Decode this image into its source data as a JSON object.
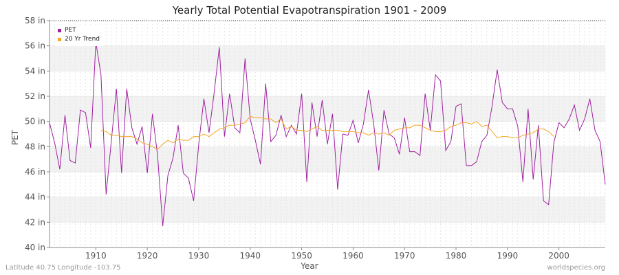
{
  "chart_data": {
    "type": "line",
    "title": "Yearly Total Potential Evapotranspiration 1901 - 2009",
    "xlabel": "Year",
    "ylabel": "PET",
    "xlim": [
      1901,
      2009
    ],
    "ylim": [
      40,
      58
    ],
    "x_ticks": [
      1910,
      1920,
      1930,
      1940,
      1950,
      1960,
      1970,
      1980,
      1990,
      2000
    ],
    "y_ticks": [
      40,
      42,
      44,
      46,
      48,
      50,
      52,
      54,
      56,
      58
    ],
    "y_tick_labels": [
      "40 in",
      "42 in",
      "44 in",
      "46 in",
      "48 in",
      "50 in",
      "52 in",
      "54 in",
      "56 in",
      "58 in"
    ],
    "grid": true,
    "legend_position": "top-left",
    "series": [
      {
        "name": "PET",
        "color": "#a020a0",
        "start_year": 1901,
        "values": [
          49.9,
          48.3,
          46.2,
          50.5,
          46.9,
          46.7,
          50.9,
          50.7,
          47.9,
          56.3,
          53.7,
          44.2,
          48.4,
          52.6,
          45.9,
          52.6,
          49.5,
          48.2,
          49.6,
          45.9,
          50.6,
          47.3,
          41.7,
          45.7,
          47.1,
          49.7,
          45.9,
          45.5,
          43.7,
          48.2,
          51.8,
          49.1,
          52.3,
          55.9,
          48.8,
          52.2,
          49.5,
          49.1,
          55.0,
          50.2,
          48.5,
          46.6,
          53.0,
          48.4,
          48.9,
          50.5,
          48.8,
          49.7,
          49.0,
          52.2,
          45.2,
          51.5,
          48.8,
          51.7,
          48.2,
          50.6,
          44.6,
          49.0,
          48.9,
          50.1,
          48.3,
          49.8,
          52.5,
          49.8,
          46.1,
          50.9,
          49.0,
          48.7,
          47.4,
          50.3,
          47.6,
          47.6,
          47.3,
          52.2,
          49.3,
          53.7,
          53.2,
          47.7,
          48.4,
          51.2,
          51.4,
          46.5,
          46.5,
          46.8,
          48.4,
          48.9,
          51.2,
          54.1,
          51.5,
          51.0,
          51.0,
          49.6,
          45.2,
          51.0,
          45.4,
          49.7,
          43.7,
          43.4,
          48.3,
          49.9,
          49.5,
          50.2,
          51.3,
          49.3,
          50.2,
          51.8,
          49.3,
          48.4,
          45.0
        ]
      },
      {
        "name": "20 Yr Trend",
        "color": "#f5a623",
        "start_year": 1911,
        "values": [
          49.3,
          49.2,
          48.9,
          48.9,
          48.8,
          48.8,
          48.8,
          48.6,
          48.3,
          48.2,
          48.0,
          47.8,
          48.2,
          48.5,
          48.3,
          48.6,
          48.5,
          48.5,
          48.8,
          48.8,
          49.0,
          48.8,
          49.1,
          49.4,
          49.5,
          49.7,
          49.7,
          49.8,
          49.9,
          50.4,
          50.3,
          50.3,
          50.2,
          50.2,
          49.9,
          50.2,
          49.4,
          49.6,
          49.3,
          49.3,
          49.2,
          49.4,
          49.6,
          49.3,
          49.3,
          49.3,
          49.3,
          49.2,
          49.2,
          49.2,
          49.1,
          49.1,
          48.9,
          49.1,
          49.0,
          49.1,
          48.9,
          49.3,
          49.4,
          49.5,
          49.5,
          49.7,
          49.7,
          49.5,
          49.3,
          49.2,
          49.2,
          49.3,
          49.6,
          49.7,
          49.9,
          49.9,
          49.8,
          50.0,
          49.6,
          49.7,
          49.2,
          48.7,
          48.8,
          48.8,
          48.7,
          48.7,
          48.9,
          49.0,
          49.1,
          49.4,
          49.4,
          49.2,
          48.8
        ]
      }
    ]
  },
  "footer": {
    "location": "Latitude 40.75 Longitude -103.75",
    "source": "worldspecies.org"
  }
}
